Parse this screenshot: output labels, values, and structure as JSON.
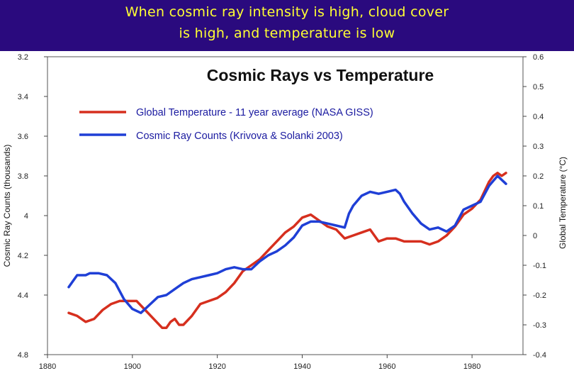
{
  "header": {
    "title_line1": "When cosmic ray intensity is high, cloud cover",
    "title_line2": "is high, and temperature is low"
  },
  "colors": {
    "banner_bg": "#2a0a7e",
    "banner_text": "#ffff33",
    "temperature": "#d62f1e",
    "cosmic": "#1f3fd6"
  },
  "chart_data": {
    "type": "line",
    "title": "Cosmic Rays vs Temperature",
    "xlabel": "",
    "ylabel_left": "Cosmic Ray Counts (thousands)",
    "ylabel_right": "Global Temperature (°C)",
    "xlim": [
      1880,
      1992
    ],
    "ylim_left": [
      3.2,
      4.8
    ],
    "ylim_left_inverted": true,
    "ylim_right": [
      -0.4,
      0.6
    ],
    "x_ticks": [
      "1880",
      "1900",
      "1920",
      "1940",
      "1960",
      "1980"
    ],
    "y_left_ticks": [
      "3.2",
      "3.4",
      "3.6",
      "3.8",
      "4",
      "4.2",
      "4.4",
      "4.8"
    ],
    "y_left_tick_values": [
      3.2,
      3.4,
      3.6,
      3.8,
      4.0,
      4.2,
      4.4,
      4.8
    ],
    "y_right_ticks": [
      "0.6",
      "0.5",
      "0.4",
      "0.3",
      "0.2",
      "0.1",
      "0",
      "-0.1",
      "-0.2",
      "-0.3",
      "-0.4"
    ],
    "y_right_tick_values": [
      0.6,
      0.5,
      0.4,
      0.3,
      0.2,
      0.1,
      0.0,
      -0.1,
      -0.2,
      -0.3,
      -0.4
    ],
    "legend_position": "top-left",
    "series": [
      {
        "name": "Global Temperature - 11 year average (NASA GISS)",
        "axis": "right",
        "color": "#d62f1e",
        "x": [
          1885,
          1887,
          1889,
          1891,
          1893,
          1895,
          1897,
          1899,
          1901,
          1903,
          1905,
          1907,
          1908,
          1909,
          1910,
          1911,
          1912,
          1914,
          1916,
          1918,
          1920,
          1922,
          1924,
          1926,
          1928,
          1930,
          1932,
          1934,
          1936,
          1938,
          1940,
          1942,
          1944,
          1946,
          1948,
          1950,
          1952,
          1954,
          1956,
          1958,
          1960,
          1962,
          1964,
          1966,
          1968,
          1970,
          1972,
          1974,
          1976,
          1978,
          1980,
          1982,
          1984,
          1985,
          1986,
          1987,
          1988
        ],
        "values": [
          -0.26,
          -0.27,
          -0.29,
          -0.28,
          -0.25,
          -0.23,
          -0.22,
          -0.22,
          -0.22,
          -0.25,
          -0.28,
          -0.31,
          -0.31,
          -0.29,
          -0.28,
          -0.3,
          -0.3,
          -0.27,
          -0.23,
          -0.22,
          -0.21,
          -0.19,
          -0.16,
          -0.12,
          -0.1,
          -0.08,
          -0.05,
          -0.02,
          0.01,
          0.03,
          0.06,
          0.07,
          0.05,
          0.03,
          0.02,
          -0.01,
          0.0,
          0.01,
          0.02,
          -0.02,
          -0.01,
          -0.01,
          -0.02,
          -0.02,
          -0.02,
          -0.03,
          -0.02,
          0.0,
          0.03,
          0.07,
          0.09,
          0.12,
          0.18,
          0.2,
          0.21,
          0.2,
          0.21
        ]
      },
      {
        "name": "Cosmic Ray Counts (Krivova & Solanki 2003)",
        "axis": "left",
        "color": "#1f3fd6",
        "x": [
          1885,
          1886,
          1887,
          1889,
          1890,
          1892,
          1894,
          1896,
          1898,
          1900,
          1902,
          1904,
          1906,
          1908,
          1910,
          1912,
          1914,
          1916,
          1918,
          1920,
          1922,
          1924,
          1926,
          1928,
          1930,
          1932,
          1934,
          1936,
          1938,
          1940,
          1942,
          1944,
          1946,
          1948,
          1950,
          1951,
          1952,
          1954,
          1956,
          1958,
          1960,
          1962,
          1963,
          1964,
          1966,
          1968,
          1970,
          1972,
          1974,
          1976,
          1978,
          1980,
          1982,
          1984,
          1986,
          1988
        ],
        "values": [
          4.36,
          4.33,
          4.3,
          4.3,
          4.29,
          4.29,
          4.3,
          4.34,
          4.42,
          4.47,
          4.49,
          4.45,
          4.41,
          4.4,
          4.37,
          4.34,
          4.32,
          4.31,
          4.3,
          4.29,
          4.27,
          4.26,
          4.27,
          4.27,
          4.23,
          4.2,
          4.18,
          4.15,
          4.11,
          4.05,
          4.03,
          4.03,
          4.04,
          4.05,
          4.06,
          3.99,
          3.95,
          3.9,
          3.88,
          3.89,
          3.88,
          3.87,
          3.89,
          3.93,
          3.99,
          4.04,
          4.07,
          4.06,
          4.08,
          4.05,
          3.97,
          3.95,
          3.93,
          3.85,
          3.8,
          3.84
        ]
      }
    ]
  }
}
